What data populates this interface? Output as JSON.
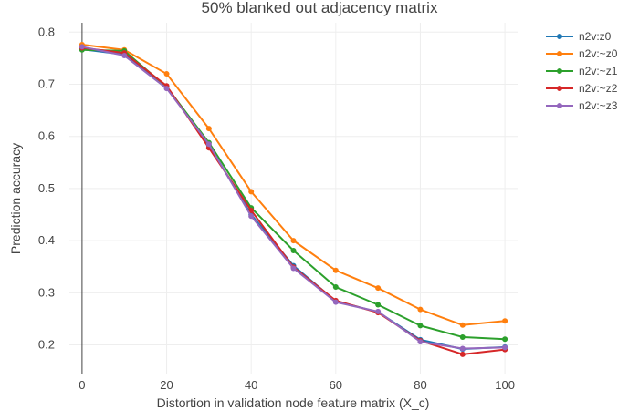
{
  "chart_data": {
    "type": "line",
    "title": "50% blanked out adjacency matrix",
    "xlabel": "Distortion in validation node feature matrix (X_c)",
    "ylabel": "Prediction accuracy",
    "x": [
      0,
      10,
      20,
      30,
      40,
      50,
      60,
      70,
      80,
      90,
      100
    ],
    "xlim": [
      -3,
      103
    ],
    "ylim": [
      0.145,
      0.818
    ],
    "xticks": [
      0,
      20,
      40,
      60,
      80,
      100
    ],
    "yticks": [
      0.2,
      0.3,
      0.4,
      0.5,
      0.6,
      0.7,
      0.8
    ],
    "grid": true,
    "legend": "top-right",
    "series": [
      {
        "name": "n2v:z0",
        "color": "#1f77b4",
        "values": [
          0.767,
          0.757,
          0.695,
          0.583,
          0.45,
          0.352,
          0.284,
          0.263,
          0.21,
          0.192,
          0.196
        ]
      },
      {
        "name": "n2v:~z0",
        "color": "#ff7f0e",
        "values": [
          0.776,
          0.766,
          0.72,
          0.615,
          0.494,
          0.4,
          0.343,
          0.309,
          0.268,
          0.238,
          0.246
        ]
      },
      {
        "name": "n2v:~z1",
        "color": "#2ca02c",
        "values": [
          0.766,
          0.764,
          0.695,
          0.588,
          0.463,
          0.381,
          0.311,
          0.277,
          0.237,
          0.215,
          0.211
        ]
      },
      {
        "name": "n2v:~z2",
        "color": "#d62728",
        "values": [
          0.77,
          0.76,
          0.697,
          0.578,
          0.458,
          0.349,
          0.285,
          0.262,
          0.208,
          0.182,
          0.191
        ]
      },
      {
        "name": "n2v:~z3",
        "color": "#9467bd",
        "values": [
          0.772,
          0.755,
          0.692,
          0.585,
          0.447,
          0.347,
          0.282,
          0.264,
          0.206,
          0.193,
          0.195
        ]
      }
    ]
  }
}
